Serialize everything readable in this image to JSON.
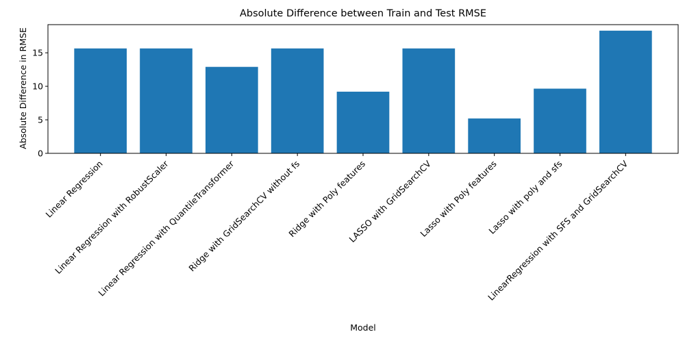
{
  "colors": {
    "bar": "#1f77b4",
    "axis": "#000000",
    "background": "#ffffff"
  },
  "chart_data": {
    "type": "bar",
    "title": "Absolute Difference between Train and Test RMSE",
    "xlabel": "Model",
    "ylabel": "Absolute Difference in RMSE",
    "categories": [
      "Linear Regression",
      "Linear Regression with RobustScaler",
      "Linear Regression with QuantileTransformer",
      "Ridge with GridSearchCV without fs",
      "Ridge with Poly features",
      "LASSO with GridSearchCV",
      "Lasso with Poly features",
      "Lasso with poly and sfs",
      "LinearRegression with SFS and GridSearchCV"
    ],
    "values": [
      15.65,
      15.65,
      12.9,
      15.65,
      9.2,
      15.65,
      5.2,
      9.65,
      18.3
    ],
    "yticks": [
      0,
      5,
      10,
      15
    ],
    "ytick_labels": [
      "0",
      "5",
      "10",
      "15"
    ],
    "ylim": [
      0,
      19.2
    ],
    "grid": false,
    "legend": "none"
  }
}
